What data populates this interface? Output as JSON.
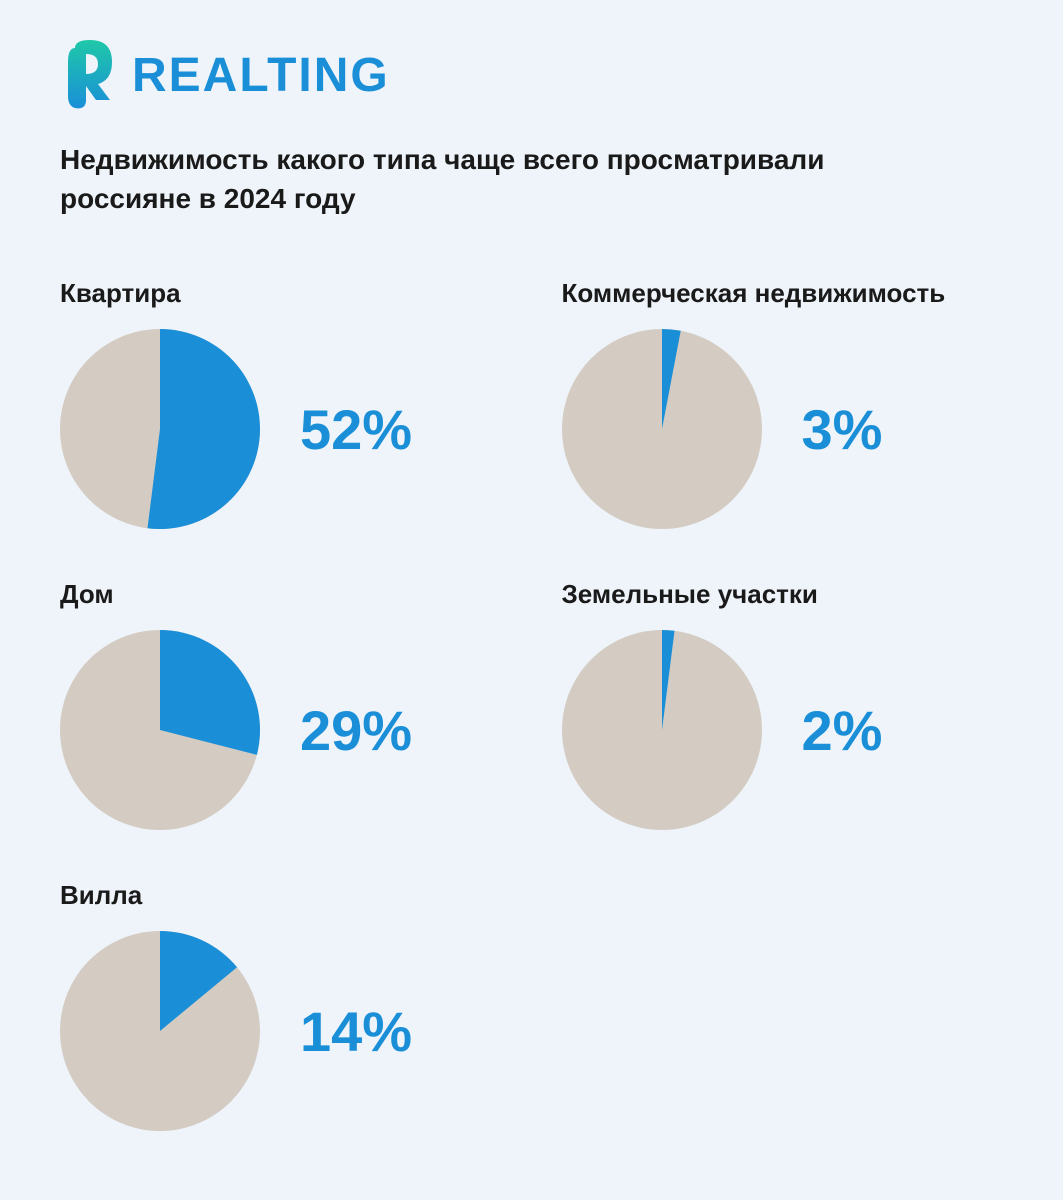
{
  "brand": {
    "name": "REALTING",
    "logo_color_top": "#1fc8a8",
    "logo_color_bottom": "#1a8fd8",
    "text_color": "#1a8fd8"
  },
  "title": "Недвижимость какого типа чаще всего просматривали россияне в 2024 году",
  "background_color": "#eef4fa",
  "text_color": "#1a1a1a",
  "pie_style": {
    "type": "pie",
    "radius": 100,
    "fill_color": "#1a8fd8",
    "background_color": "#d4ccc2",
    "percentage_color": "#1a8fd8",
    "percentage_fontsize": 56,
    "label_fontsize": 26
  },
  "charts": [
    {
      "label": "Квартира",
      "value": 52
    },
    {
      "label": "Коммерческая недвижимость",
      "value": 3
    },
    {
      "label": "Дом",
      "value": 29
    },
    {
      "label": "Земельные участки",
      "value": 2
    },
    {
      "label": "Вилла",
      "value": 14
    }
  ]
}
